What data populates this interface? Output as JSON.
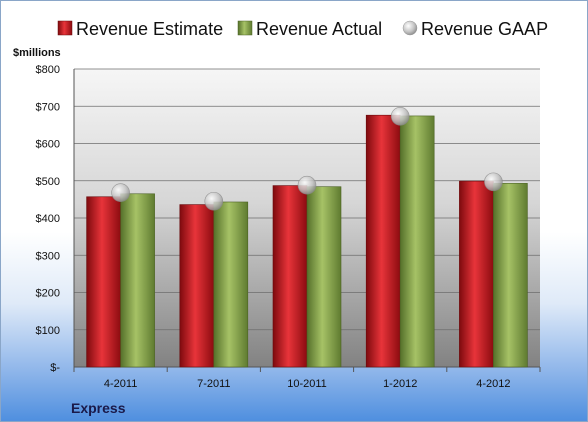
{
  "chart_data": {
    "type": "bar",
    "title": "",
    "ylabel": "$millions",
    "xlabel": "",
    "company": "Express",
    "categories": [
      "4-2011",
      "7-2011",
      "10-2011",
      "1-2012",
      "4-2012"
    ],
    "ylim": [
      0,
      800
    ],
    "yticks": [
      0,
      100,
      200,
      300,
      400,
      500,
      600,
      700,
      800
    ],
    "ytick_labels": [
      "$-",
      "$100",
      "$200",
      "$300",
      "$400",
      "$500",
      "$600",
      "$700",
      "$800"
    ],
    "grid": true,
    "legend_position": "top",
    "series": [
      {
        "name": "Revenue Estimate",
        "kind": "bar",
        "color": "#c8141c",
        "values": [
          457,
          436,
          487,
          676,
          499
        ]
      },
      {
        "name": "Revenue Actual",
        "kind": "bar",
        "color": "#8aa84a",
        "values": [
          465,
          443,
          484,
          674,
          493
        ]
      },
      {
        "name": "Revenue GAAP",
        "kind": "marker",
        "color": "#c8c8c8",
        "values": [
          468,
          445,
          488,
          673,
          497
        ]
      }
    ]
  }
}
